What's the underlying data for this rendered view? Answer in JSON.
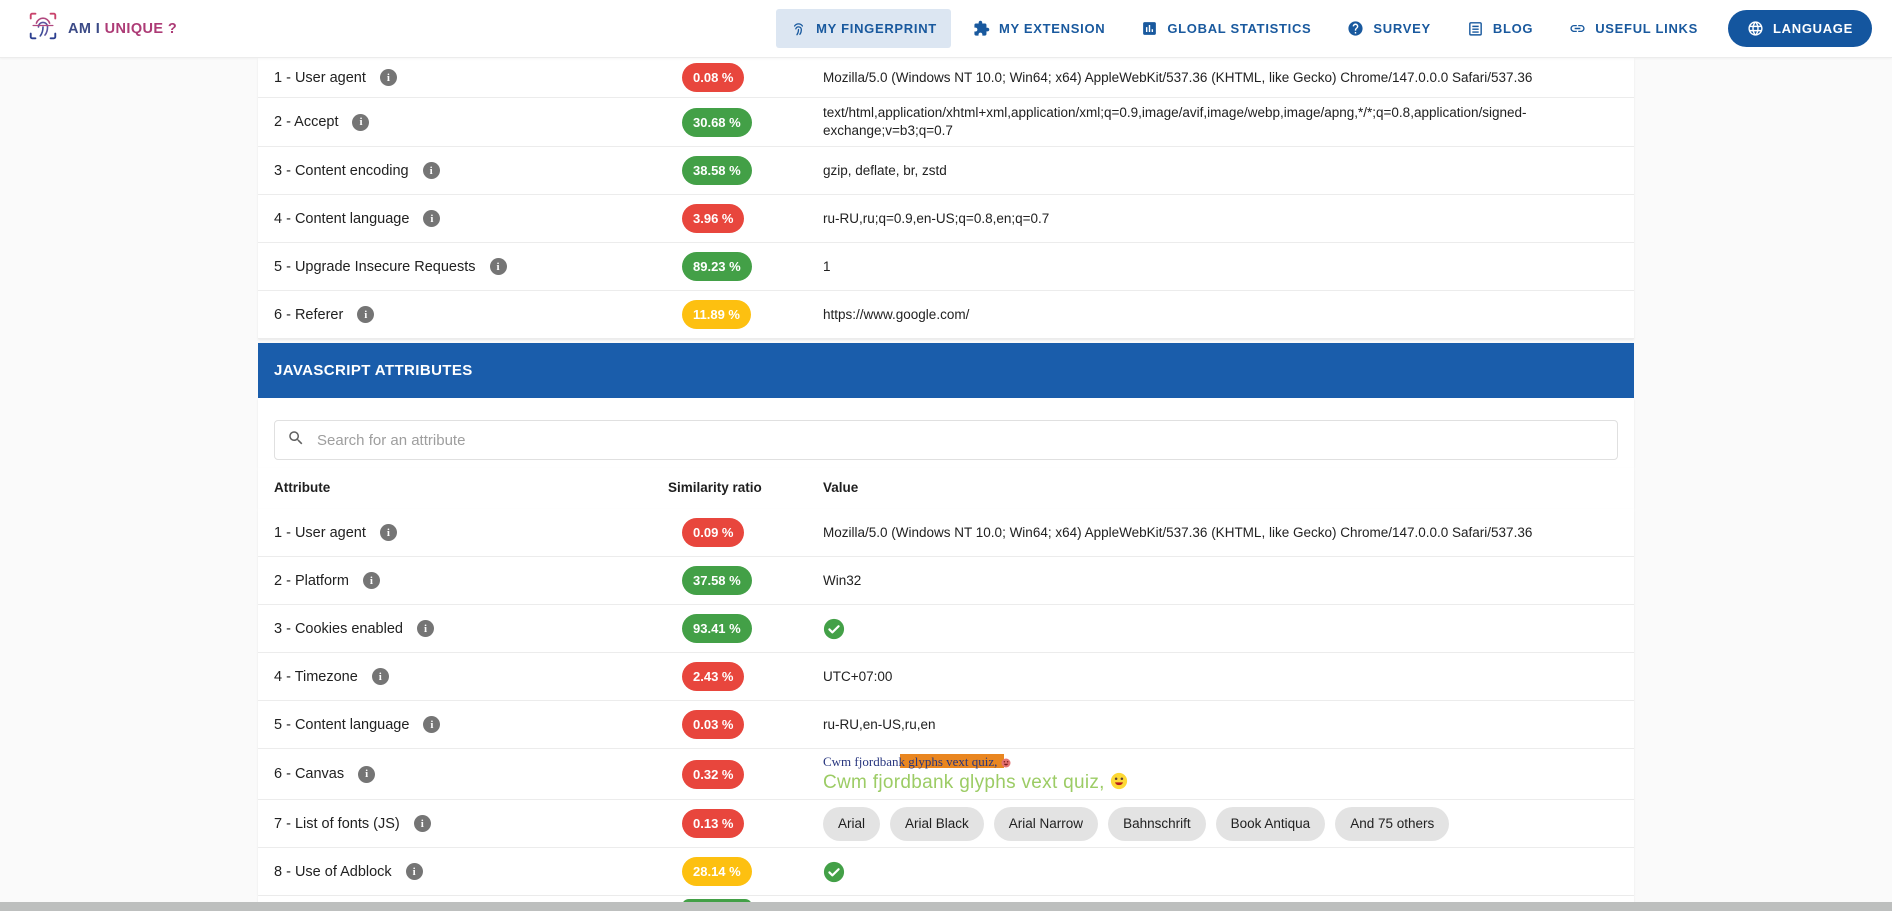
{
  "brand": {
    "text_primary": "AM I",
    "text_secondary": "UNIQUE ?"
  },
  "nav": {
    "items": [
      {
        "label": "MY FINGERPRINT",
        "icon": "fingerprint-icon",
        "active": true
      },
      {
        "label": "MY EXTENSION",
        "icon": "puzzle-icon",
        "active": false
      },
      {
        "label": "GLOBAL STATISTICS",
        "icon": "bar-chart-icon",
        "active": false
      },
      {
        "label": "SURVEY",
        "icon": "question-icon",
        "active": false
      },
      {
        "label": "BLOG",
        "icon": "book-icon",
        "active": false
      },
      {
        "label": "USEFUL LINKS",
        "icon": "link-icon",
        "active": false
      }
    ],
    "language_button": {
      "label": "LANGUAGE",
      "icon": "globe-icon"
    }
  },
  "http_table": {
    "rows": [
      {
        "label": "1 - User agent",
        "ratio": "0.08 %",
        "color": "red",
        "value_type": "text",
        "value": "Mozilla/5.0 (Windows NT 10.0; Win64; x64) AppleWebKit/537.36 (KHTML, like Gecko) Chrome/147.0.0.0 Safari/537.36"
      },
      {
        "label": "2 - Accept",
        "ratio": "30.68 %",
        "color": "green",
        "value_type": "text",
        "value": "text/html,application/xhtml+xml,application/xml;q=0.9,image/avif,image/webp,image/apng,*/*;q=0.8,application/signed-exchange;v=b3;q=0.7"
      },
      {
        "label": "3 - Content encoding",
        "ratio": "38.58 %",
        "color": "green",
        "value_type": "text",
        "value": "gzip, deflate, br, zstd"
      },
      {
        "label": "4 - Content language",
        "ratio": "3.96 %",
        "color": "red",
        "value_type": "text",
        "value": "ru-RU,ru;q=0.9,en-US;q=0.8,en;q=0.7"
      },
      {
        "label": "5 - Upgrade Insecure Requests",
        "ratio": "89.23 %",
        "color": "green",
        "value_type": "text",
        "value": "1"
      },
      {
        "label": "6 - Referer",
        "ratio": "11.89 %",
        "color": "yellow",
        "value_type": "text",
        "value": "https://www.google.com/"
      }
    ]
  },
  "js_section": {
    "title": "JAVASCRIPT ATTRIBUTES",
    "search": {
      "placeholder": "Search for an attribute"
    },
    "columns": {
      "attribute": "Attribute",
      "ratio": "Similarity ratio",
      "value": "Value"
    },
    "rows": [
      {
        "label": "1 - User agent",
        "ratio": "0.09 %",
        "color": "red",
        "value_type": "text",
        "value": "Mozilla/5.0 (Windows NT 10.0; Win64; x64) AppleWebKit/537.36 (KHTML, like Gecko) Chrome/147.0.0.0 Safari/537.36"
      },
      {
        "label": "2 - Platform",
        "ratio": "37.58 %",
        "color": "green",
        "value_type": "text",
        "value": "Win32"
      },
      {
        "label": "3 - Cookies enabled",
        "ratio": "93.41 %",
        "color": "green",
        "value_type": "check"
      },
      {
        "label": "4 - Timezone",
        "ratio": "2.43 %",
        "color": "red",
        "value_type": "text",
        "value": "UTC+07:00"
      },
      {
        "label": "5 - Content language",
        "ratio": "0.03 %",
        "color": "red",
        "value_type": "text",
        "value": "ru-RU,en-US,ru,en"
      },
      {
        "label": "6 - Canvas",
        "ratio": "0.32 %",
        "color": "red",
        "value_type": "canvas",
        "canvas": {
          "line1": "Cwm fjordbank glyphs vext quiz, 😃",
          "line2": "Cwm fjordbank glyphs vext quiz, 😃"
        }
      },
      {
        "label": "7 - List of fonts (JS)",
        "ratio": "0.13 %",
        "color": "red",
        "value_type": "chips",
        "chips": [
          "Arial",
          "Arial Black",
          "Arial Narrow",
          "Bahnschrift",
          "Book Antiqua",
          "And 75 others"
        ]
      },
      {
        "label": "8 - Use of Adblock",
        "ratio": "28.14 %",
        "color": "yellow",
        "value_type": "check"
      }
    ],
    "partial_next_row": {
      "color": "green"
    }
  },
  "colors": {
    "badge_red": "#E8463D",
    "badge_green": "#43A047",
    "badge_yellow": "#FDC010",
    "banner_blue": "#1A5DAB",
    "nav_blue": "#19599E",
    "canvas_orange": "#E98620",
    "canvas_green": "#9CCC65",
    "canvas_navy": "#27357E"
  }
}
